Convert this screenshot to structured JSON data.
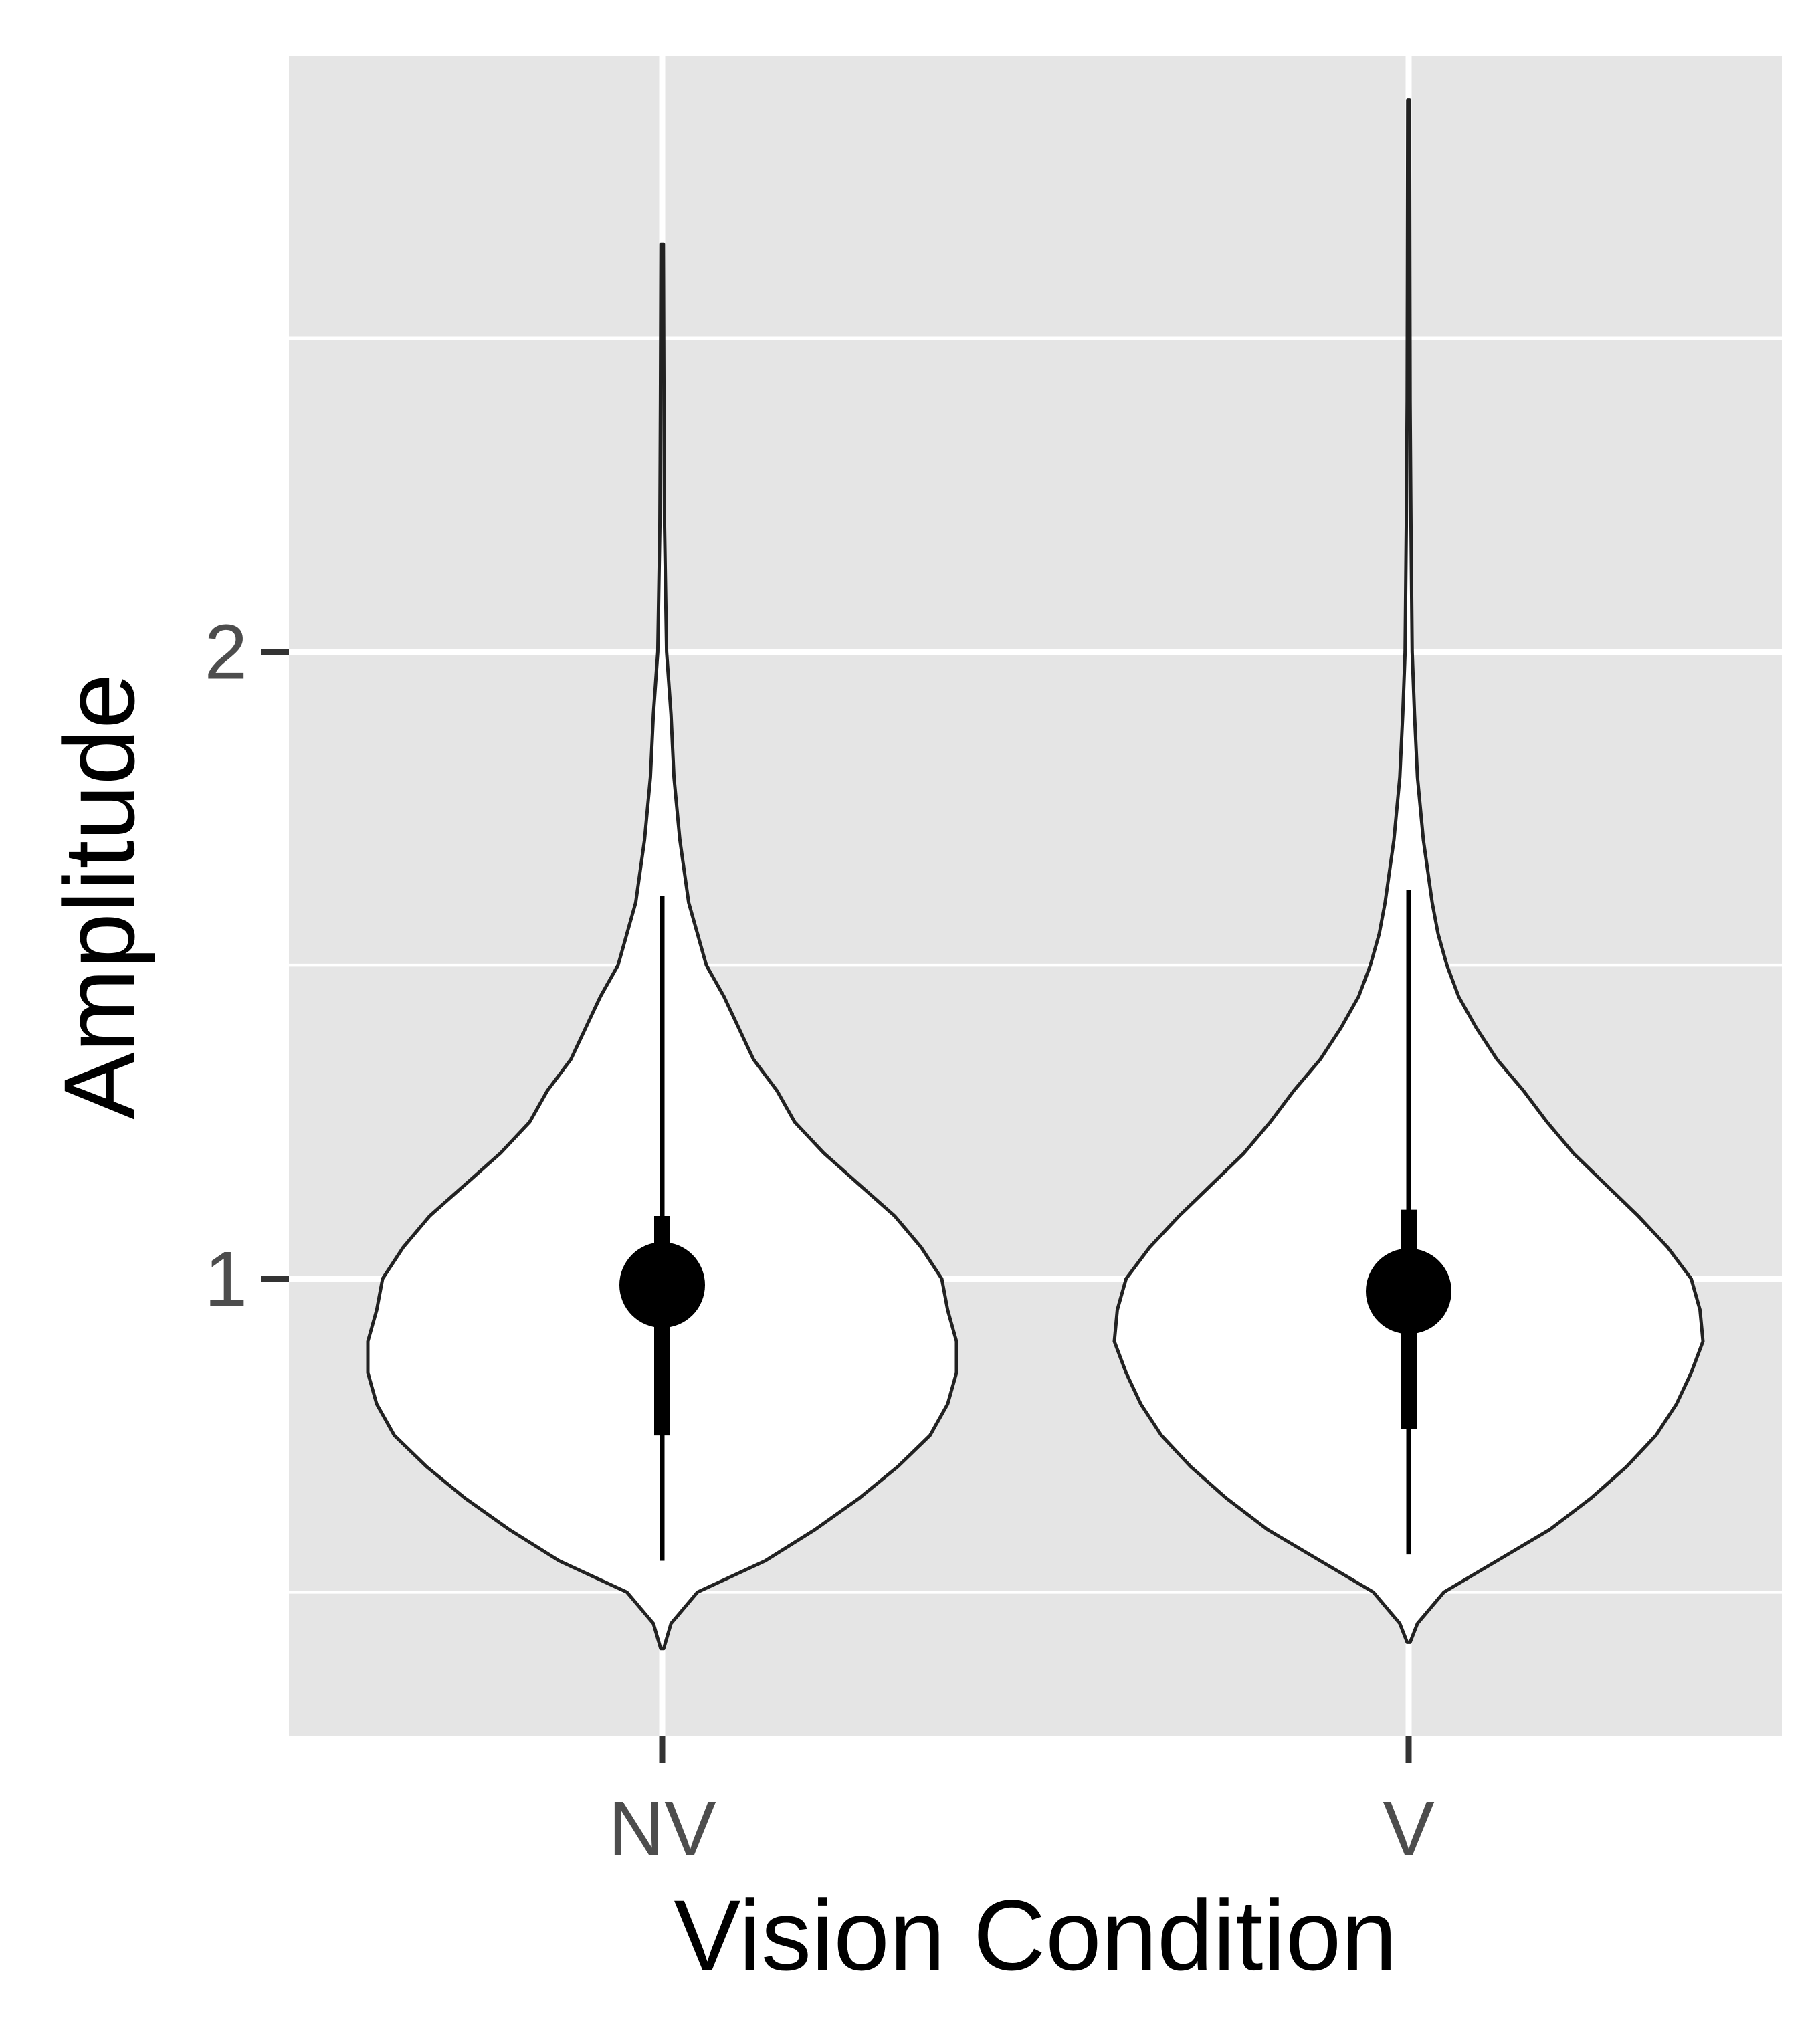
{
  "chart_data": {
    "type": "violin",
    "xlabel": "Vision Condition",
    "ylabel": "Amplitude",
    "categories": [
      "NV",
      "V"
    ],
    "y_ticks": [
      1,
      2
    ],
    "ylim": [
      0.27,
      2.95
    ],
    "grid": true,
    "background": "#e5e5e5",
    "violin_fill": "#ffffff",
    "violin_stroke": "#222222",
    "series": [
      {
        "category": "NV",
        "median": 0.99,
        "q1": 0.75,
        "q3": 1.1,
        "whisker_low": 0.55,
        "whisker_high": 1.61,
        "min": 0.41,
        "max": 2.65,
        "density": [
          [
            0.41,
            0.005
          ],
          [
            0.45,
            0.03
          ],
          [
            0.5,
            0.12
          ],
          [
            0.55,
            0.35
          ],
          [
            0.6,
            0.52
          ],
          [
            0.65,
            0.67
          ],
          [
            0.7,
            0.8
          ],
          [
            0.75,
            0.91
          ],
          [
            0.8,
            0.97
          ],
          [
            0.85,
            1.0
          ],
          [
            0.9,
            1.0
          ],
          [
            0.95,
            0.97
          ],
          [
            1.0,
            0.95
          ],
          [
            1.05,
            0.88
          ],
          [
            1.1,
            0.79
          ],
          [
            1.15,
            0.67
          ],
          [
            1.2,
            0.55
          ],
          [
            1.25,
            0.45
          ],
          [
            1.3,
            0.39
          ],
          [
            1.35,
            0.31
          ],
          [
            1.4,
            0.26
          ],
          [
            1.45,
            0.21
          ],
          [
            1.5,
            0.15
          ],
          [
            1.55,
            0.12
          ],
          [
            1.6,
            0.09
          ],
          [
            1.65,
            0.075
          ],
          [
            1.7,
            0.06
          ],
          [
            1.8,
            0.04
          ],
          [
            1.9,
            0.03
          ],
          [
            2.0,
            0.015
          ],
          [
            2.2,
            0.008
          ],
          [
            2.4,
            0.006
          ],
          [
            2.65,
            0.004
          ]
        ]
      },
      {
        "category": "V",
        "median": 0.98,
        "q1": 0.76,
        "q3": 1.11,
        "whisker_low": 0.56,
        "whisker_high": 1.62,
        "min": 0.42,
        "max": 2.88,
        "density": [
          [
            0.42,
            0.005
          ],
          [
            0.45,
            0.03
          ],
          [
            0.5,
            0.12
          ],
          [
            0.55,
            0.3
          ],
          [
            0.6,
            0.48
          ],
          [
            0.65,
            0.62
          ],
          [
            0.7,
            0.74
          ],
          [
            0.75,
            0.84
          ],
          [
            0.8,
            0.91
          ],
          [
            0.85,
            0.96
          ],
          [
            0.9,
            1.0
          ],
          [
            0.95,
            0.99
          ],
          [
            1.0,
            0.96
          ],
          [
            1.05,
            0.88
          ],
          [
            1.1,
            0.78
          ],
          [
            1.15,
            0.67
          ],
          [
            1.2,
            0.56
          ],
          [
            1.25,
            0.47
          ],
          [
            1.3,
            0.39
          ],
          [
            1.35,
            0.3
          ],
          [
            1.4,
            0.23
          ],
          [
            1.45,
            0.17
          ],
          [
            1.5,
            0.13
          ],
          [
            1.55,
            0.1
          ],
          [
            1.6,
            0.08
          ],
          [
            1.7,
            0.05
          ],
          [
            1.8,
            0.03
          ],
          [
            1.9,
            0.02
          ],
          [
            2.0,
            0.012
          ],
          [
            2.2,
            0.008
          ],
          [
            2.4,
            0.005
          ],
          [
            2.6,
            0.004
          ],
          [
            2.88,
            0.003
          ]
        ]
      }
    ]
  }
}
